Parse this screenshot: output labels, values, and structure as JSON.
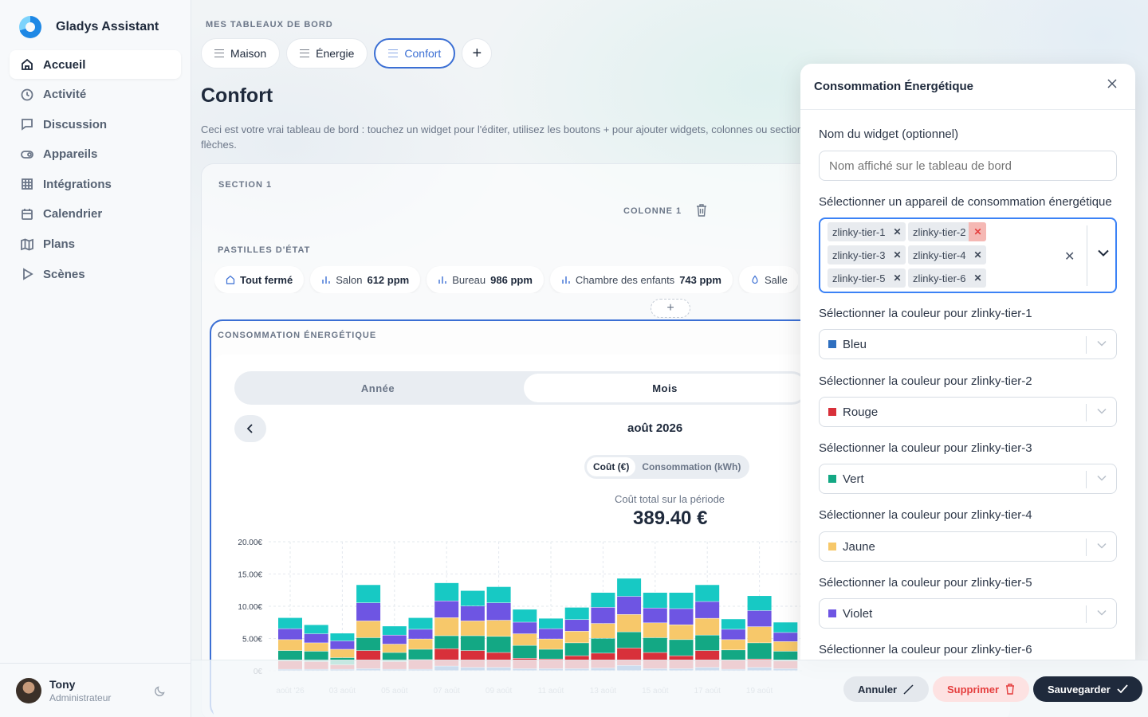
{
  "app": {
    "name": "Gladys Assistant"
  },
  "sidebar": {
    "items": [
      {
        "label": "Accueil",
        "icon": "home-icon",
        "active": true
      },
      {
        "label": "Activité",
        "icon": "clock-icon"
      },
      {
        "label": "Discussion",
        "icon": "chat-icon"
      },
      {
        "label": "Appareils",
        "icon": "toggle-icon"
      },
      {
        "label": "Intégrations",
        "icon": "grid-icon"
      },
      {
        "label": "Calendrier",
        "icon": "calendar-icon"
      },
      {
        "label": "Plans",
        "icon": "map-icon"
      },
      {
        "label": "Scènes",
        "icon": "play-icon"
      }
    ],
    "user": {
      "name": "Tony",
      "role": "Administrateur"
    }
  },
  "dashboards": {
    "label": "MES TABLEAUX DE BORD",
    "tabs": [
      {
        "label": "Maison"
      },
      {
        "label": "Énergie"
      },
      {
        "label": "Confort",
        "active": true
      }
    ],
    "add": "+"
  },
  "page": {
    "title": "Confort",
    "description": "Ceci est votre vrai tableau de bord : touchez un widget pour l'éditer, utilisez les boutons + pour ajouter widgets, colonnes ou section flèches."
  },
  "section": {
    "label": "SECTION 1",
    "column_label": "COLONNE 1",
    "pills_label": "PASTILLES D'ÉTAT",
    "pills": [
      {
        "icon": "home-icon",
        "label": "Tout fermé",
        "value": ""
      },
      {
        "icon": "bar-chart-icon",
        "label": "Salon",
        "value": "612 ppm"
      },
      {
        "icon": "bar-chart-icon",
        "label": "Bureau",
        "value": "986 ppm"
      },
      {
        "icon": "bar-chart-icon",
        "label": "Chambre des enfants",
        "value": "743 ppm"
      },
      {
        "icon": "drop-icon",
        "label": "Salle",
        "value": ""
      }
    ],
    "add_column": "+"
  },
  "widget": {
    "title": "CONSOMMATION ÉNERGÉTIQUE",
    "seg": [
      "Année",
      "Mois"
    ],
    "period": "août 2026",
    "modes": [
      "Coût (€)",
      "Consommation (kWh)"
    ],
    "total_label": "Coût total sur la période",
    "total_value": "389.40 €"
  },
  "chart_data": {
    "type": "bar",
    "stacked": true,
    "ylim": [
      0,
      20
    ],
    "yticks": [
      "20.00€",
      "15.00€",
      "10.00€",
      "5.00€",
      "0€"
    ],
    "xticks": [
      "août '26",
      "03 août",
      "05 août",
      "07 août",
      "09 août",
      "11 août",
      "13 août",
      "15 août",
      "17 août",
      "19 août"
    ],
    "categories": [
      "01",
      "02",
      "03",
      "04",
      "05",
      "06",
      "07",
      "08",
      "09",
      "10",
      "11",
      "12",
      "13",
      "14",
      "15",
      "16",
      "17",
      "18",
      "19",
      "20"
    ],
    "series": [
      {
        "color": "#2f6fbf",
        "values": [
          0.2,
          0.2,
          0.2,
          0.3,
          0.2,
          0.2,
          0.7,
          0.5,
          0.5,
          0.3,
          0.3,
          0.3,
          0.4,
          0.8,
          0.3,
          0.3,
          0.5,
          0.2,
          0.5,
          0.3
        ]
      },
      {
        "color": "#d8303a",
        "values": [
          1.3,
          1.2,
          0.7,
          2.8,
          1.2,
          1.5,
          2.7,
          2.6,
          2.3,
          1.6,
          1.5,
          2.0,
          2.3,
          2.7,
          2.5,
          2.0,
          2.6,
          1.4,
          1.3,
          1.2
        ]
      },
      {
        "color": "#13a884",
        "values": [
          1.6,
          1.6,
          1.1,
          2.0,
          1.4,
          1.6,
          2.0,
          2.3,
          2.5,
          2.0,
          1.5,
          2.0,
          2.3,
          2.5,
          2.3,
          2.5,
          2.4,
          1.6,
          2.5,
          1.5
        ]
      },
      {
        "color": "#f7c86a",
        "values": [
          1.7,
          1.3,
          1.3,
          2.6,
          1.3,
          1.6,
          2.8,
          2.3,
          2.5,
          1.8,
          1.6,
          1.8,
          2.3,
          2.7,
          2.3,
          2.3,
          2.6,
          1.6,
          2.5,
          1.5
        ]
      },
      {
        "color": "#6e55e3",
        "values": [
          1.7,
          1.4,
          1.3,
          2.8,
          1.4,
          1.5,
          2.6,
          2.3,
          2.7,
          1.8,
          1.6,
          1.8,
          2.5,
          2.8,
          2.3,
          2.5,
          2.6,
          1.6,
          2.5,
          1.4
        ]
      },
      {
        "color": "#17c9c4",
        "values": [
          1.7,
          1.4,
          1.2,
          2.8,
          1.4,
          1.8,
          2.8,
          2.4,
          2.5,
          2.0,
          1.6,
          1.9,
          2.3,
          2.8,
          2.4,
          2.5,
          2.6,
          1.6,
          2.3,
          1.6
        ]
      }
    ]
  },
  "modal": {
    "title": "Consommation Énergétique",
    "name_label": "Nom du widget (optionnel)",
    "name_placeholder": "Nom affiché sur le tableau de bord",
    "device_label": "Sélectionner un appareil de consommation énergétique",
    "devices": [
      "zlinky-tier-1",
      "zlinky-tier-2",
      "zlinky-tier-3",
      "zlinky-tier-4",
      "zlinky-tier-5",
      "zlinky-tier-6"
    ],
    "color_fields": [
      {
        "label": "Sélectionner la couleur pour zlinky-tier-1",
        "value": "Bleu",
        "color": "#2f6fbf"
      },
      {
        "label": "Sélectionner la couleur pour zlinky-tier-2",
        "value": "Rouge",
        "color": "#d8303a"
      },
      {
        "label": "Sélectionner la couleur pour zlinky-tier-3",
        "value": "Vert",
        "color": "#13a884"
      },
      {
        "label": "Sélectionner la couleur pour zlinky-tier-4",
        "value": "Jaune",
        "color": "#f7c86a"
      },
      {
        "label": "Sélectionner la couleur pour zlinky-tier-5",
        "value": "Violet",
        "color": "#6e55e3"
      },
      {
        "label": "Sélectionner la couleur pour zlinky-tier-6",
        "value": "",
        "color": ""
      }
    ]
  },
  "actions": {
    "cancel": "Annuler",
    "delete": "Supprimer",
    "save": "Sauvegarder"
  }
}
